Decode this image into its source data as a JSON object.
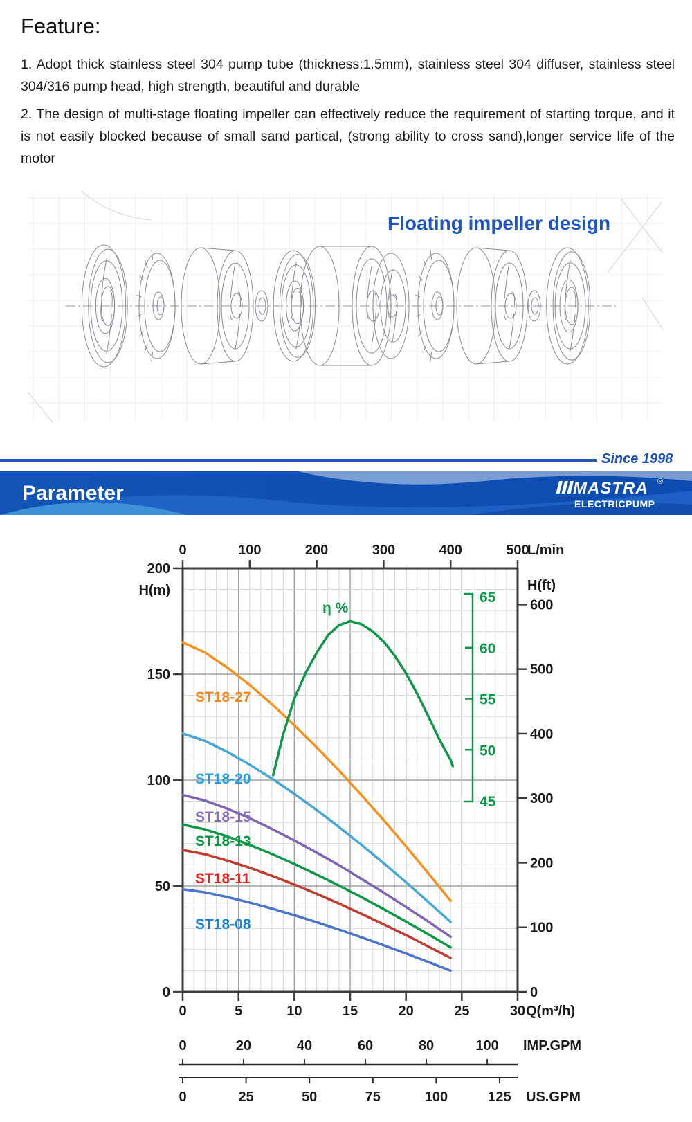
{
  "feature": {
    "title": "Feature:",
    "items": [
      "1. Adopt thick stainless steel 304 pump tube (thickness:1.5mm),  stainless steel 304 diffuser,  stainless steel 304/316 pump head, high strength, beautiful and durable",
      "2. The design of multi-stage floating impeller can effectively reduce the requirement of starting torque,  and it is not easily blocked because of small sand partical, (strong ability to cross sand),longer service life of the motor"
    ]
  },
  "drawing": {
    "title": "Floating impeller design",
    "title_color": "#1d55c0"
  },
  "banner": {
    "since": "Since 1998",
    "title": "Parameter",
    "brand": "MASTRA",
    "brand_sub": "ELECTRICPUMP",
    "registered": "®",
    "bar_color": "#1254b6",
    "rule_color": "#1a58b8"
  },
  "chart_data": {
    "type": "line",
    "title": "Pump performance curves ST18 series",
    "xlim_m3h": [
      0,
      30
    ],
    "ylim_m": [
      0,
      200
    ],
    "q_m3h": [
      0,
      2,
      4,
      6,
      8,
      10,
      12,
      14,
      16,
      18,
      20,
      22,
      24
    ],
    "series": [
      {
        "name": "ST18-27",
        "color": "#f5911e",
        "label_color": "#f5891d",
        "values": [
          165,
          160.2,
          153.1,
          144.9,
          135.8,
          125.9,
          115.5,
          104.5,
          93,
          81.1,
          68.7,
          56,
          43
        ]
      },
      {
        "name": "ST18-20",
        "color": "#45a7d8",
        "label_color": "#22a0e0",
        "values": [
          122,
          118.5,
          113.3,
          107.3,
          100.7,
          93.5,
          85.9,
          77.8,
          69.5,
          60.8,
          51.8,
          42.5,
          33
        ]
      },
      {
        "name": "ST18-15",
        "color": "#7d64b4",
        "label_color": "#8570bd",
        "values": [
          93,
          90.3,
          86.5,
          82,
          76.9,
          71.5,
          65.8,
          59.8,
          53.4,
          46.9,
          40.1,
          33.2,
          26
        ]
      },
      {
        "name": "ST18-13",
        "color": "#0d9747",
        "label_color": "#0d9747",
        "values": [
          79,
          76.7,
          73.4,
          69.4,
          65.1,
          60.4,
          55.4,
          50.2,
          44.8,
          39.1,
          33.2,
          27.2,
          21
        ]
      },
      {
        "name": "ST18-11",
        "color": "#c03b30",
        "label_color": "#e8231f",
        "values": [
          67,
          65,
          62,
          58.6,
          54.8,
          50.7,
          46.3,
          41.7,
          36.9,
          31.9,
          26.8,
          21.4,
          16
        ]
      },
      {
        "name": "ST18-08",
        "color": "#4a74c9",
        "label_color": "#1b82d6",
        "values": [
          48.5,
          47,
          44.8,
          42.2,
          39.3,
          36.2,
          32.9,
          29.4,
          25.8,
          22,
          18.1,
          14.1,
          10
        ]
      }
    ],
    "efficiency": {
      "label": "η %",
      "color": "#0d9747",
      "axis_ticks": [
        65,
        60,
        55,
        50,
        45
      ],
      "points": [
        [
          8.1,
          47.5
        ],
        [
          9,
          51.5
        ],
        [
          10,
          55
        ],
        [
          11,
          57.5
        ],
        [
          12,
          59.5
        ],
        [
          13,
          61.2
        ],
        [
          14,
          62.2
        ],
        [
          15,
          62.6
        ],
        [
          16,
          62.3
        ],
        [
          17,
          61.6
        ],
        [
          18,
          60.6
        ],
        [
          19,
          59.2
        ],
        [
          20,
          57.5
        ],
        [
          21,
          55.5
        ],
        [
          22,
          53.3
        ],
        [
          23,
          51
        ],
        [
          24,
          49
        ],
        [
          24.2,
          48.4
        ]
      ]
    },
    "axes": {
      "top": {
        "unit": "L/min",
        "ticks": [
          0,
          100,
          200,
          300,
          400,
          500
        ]
      },
      "left": {
        "unit": "H(m)",
        "ticks": [
          200,
          150,
          100,
          50,
          0
        ]
      },
      "right": {
        "unit": "H(ft)",
        "ticks": [
          600,
          500,
          400,
          300,
          200,
          100,
          0
        ]
      },
      "bottom": {
        "unit": "Q(m³/h)",
        "ticks": [
          0,
          5,
          10,
          15,
          20,
          25,
          30
        ]
      },
      "imp": {
        "unit": "IMP.GPM",
        "ticks": [
          0,
          20,
          40,
          60,
          80,
          100
        ]
      },
      "us": {
        "unit": "US.GPM",
        "ticks": [
          0,
          25,
          50,
          75,
          100,
          125
        ]
      }
    },
    "grid": {
      "minor_q": 1,
      "major_q": 5,
      "minor_h": 10,
      "major_h": 50,
      "legend_position": "inside-left"
    }
  }
}
